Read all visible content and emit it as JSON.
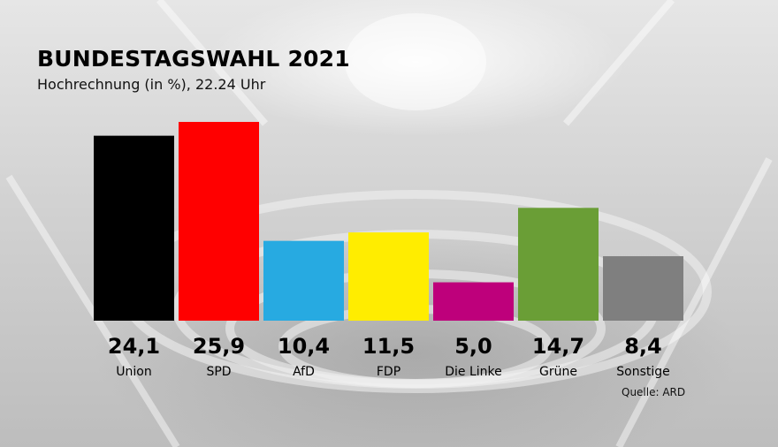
{
  "header": {
    "title": "BUNDESTAGSWAHL 2021",
    "subtitle": "Hochrechnung (in %), 22.24 Uhr"
  },
  "source": "Quelle: ARD",
  "chart_data": {
    "type": "bar",
    "categories": [
      "Union",
      "SPD",
      "AfD",
      "FDP",
      "Die Linke",
      "Grüne",
      "Sonstige"
    ],
    "values": [
      24.1,
      25.9,
      10.4,
      11.5,
      5.0,
      14.7,
      8.4
    ],
    "value_labels": [
      "24,1",
      "25,9",
      "10,4",
      "11,5",
      "5,0",
      "14,7",
      "8,4"
    ],
    "colors": [
      "#000000",
      "#ff0000",
      "#27aae1",
      "#ffed00",
      "#be007b",
      "#6a9e36",
      "#7f7f7f"
    ],
    "unit": "%",
    "ylim": [
      0,
      25.9
    ],
    "grid": false,
    "legend": "none"
  }
}
